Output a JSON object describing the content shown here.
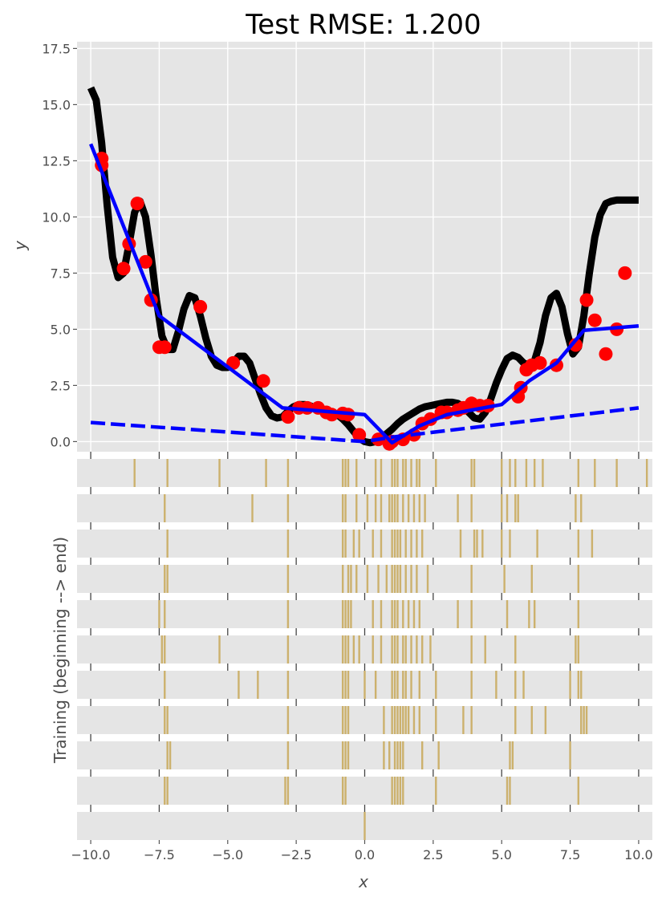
{
  "chart_data": {
    "type": "line",
    "title": "Test RMSE: 1.200",
    "xlabel": "x",
    "ylabel": "y",
    "xlim": [
      -10.5,
      10.5
    ],
    "ylim": [
      -0.45,
      17.8
    ],
    "xticks": [
      "−10.0",
      "−7.5",
      "−5.0",
      "−2.5",
      "0.0",
      "2.5",
      "5.0",
      "7.5",
      "10.0"
    ],
    "yticks": [
      "0.0",
      "2.5",
      "5.0",
      "7.5",
      "10.0",
      "12.5",
      "15.0",
      "17.5"
    ],
    "grid": true,
    "colors": {
      "background": "#e5e5e5",
      "true_function": "#000000",
      "points": "#ff0000",
      "prediction": "#0000ff",
      "linear": "#0000ff",
      "training_marks": "#b8860b"
    },
    "series": [
      {
        "style": "black thick line",
        "x": [
          -10.0,
          -9.8,
          -9.6,
          -9.4,
          -9.2,
          -9.0,
          -8.8,
          -8.6,
          -8.4,
          -8.2,
          -8.0,
          -7.8,
          -7.6,
          -7.4,
          -7.2,
          -7.0,
          -6.8,
          -6.6,
          -6.4,
          -6.2,
          -6.0,
          -5.8,
          -5.6,
          -5.4,
          -5.2,
          -5.0,
          -4.8,
          -4.6,
          -4.4,
          -4.2,
          -4.0,
          -3.8,
          -3.6,
          -3.4,
          -3.2,
          -3.0,
          -2.8,
          -2.6,
          -2.4,
          -2.2,
          -2.0,
          -1.8,
          -1.6,
          -1.4,
          -1.2,
          -1.0,
          -0.8,
          -0.6,
          -0.4,
          -0.2,
          0.0,
          0.2,
          0.4,
          0.6,
          0.8,
          1.0,
          1.2,
          1.4,
          1.6,
          1.8,
          2.0,
          2.2,
          2.4,
          2.6,
          2.8,
          3.0,
          3.2,
          3.4,
          3.6,
          3.8,
          4.0,
          4.2,
          4.4,
          4.6,
          4.8,
          5.0,
          5.2,
          5.4,
          5.6,
          5.8,
          6.0,
          6.2,
          6.4,
          6.6,
          6.8,
          7.0,
          7.2,
          7.4,
          7.6,
          7.8,
          8.0,
          8.2,
          8.4,
          8.6,
          8.8,
          9.0,
          9.2,
          9.4,
          9.6,
          9.8,
          10.0
        ],
        "y": [
          15.75,
          15.2,
          13.3,
          10.5,
          8.2,
          7.3,
          7.5,
          8.8,
          10.2,
          10.7,
          10.0,
          8.3,
          6.3,
          4.7,
          4.1,
          4.1,
          4.9,
          5.9,
          6.5,
          6.4,
          5.6,
          4.6,
          3.8,
          3.4,
          3.3,
          3.3,
          3.5,
          3.8,
          3.8,
          3.5,
          2.8,
          2.1,
          1.5,
          1.15,
          1.05,
          1.1,
          1.35,
          1.55,
          1.65,
          1.65,
          1.6,
          1.5,
          1.4,
          1.3,
          1.25,
          1.2,
          1.0,
          0.75,
          0.45,
          0.15,
          0.0,
          -0.05,
          0.0,
          0.15,
          0.35,
          0.55,
          0.8,
          1.0,
          1.15,
          1.3,
          1.45,
          1.55,
          1.6,
          1.65,
          1.7,
          1.75,
          1.75,
          1.7,
          1.55,
          1.3,
          1.05,
          1.0,
          1.3,
          1.9,
          2.6,
          3.2,
          3.7,
          3.85,
          3.75,
          3.5,
          3.4,
          3.6,
          4.4,
          5.6,
          6.4,
          6.6,
          6.0,
          4.8,
          3.9,
          4.2,
          5.6,
          7.5,
          9.1,
          10.1,
          10.6,
          10.7,
          10.75,
          10.75,
          10.75,
          10.75,
          10.75
        ]
      },
      {
        "style": "red points",
        "x": [
          -9.6,
          -9.6,
          -8.8,
          -8.6,
          -8.3,
          -8.0,
          -7.8,
          -7.5,
          -7.3,
          -6.0,
          -4.8,
          -3.7,
          -2.8,
          -2.4,
          -2.1,
          -1.7,
          -1.4,
          -1.2,
          -0.8,
          -0.6,
          -0.2,
          0.5,
          0.9,
          1.0,
          1.4,
          1.8,
          2.1,
          2.4,
          2.8,
          3.0,
          3.4,
          3.6,
          3.9,
          4.2,
          4.5,
          5.6,
          5.7,
          5.9,
          6.1,
          6.4,
          7.0,
          7.7,
          8.1,
          8.4,
          8.8,
          9.2,
          9.5
        ],
        "y": [
          12.6,
          12.3,
          7.7,
          8.8,
          10.6,
          8.0,
          6.3,
          4.2,
          4.2,
          6.0,
          3.5,
          2.7,
          1.1,
          1.5,
          1.5,
          1.5,
          1.3,
          1.2,
          1.25,
          1.2,
          0.3,
          0.1,
          -0.1,
          0.0,
          0.1,
          0.3,
          0.8,
          1.0,
          1.3,
          1.3,
          1.4,
          1.5,
          1.7,
          1.6,
          1.6,
          2.0,
          2.4,
          3.2,
          3.4,
          3.5,
          3.4,
          4.3,
          6.3,
          5.4,
          3.9,
          5.0,
          7.5
        ]
      },
      {
        "style": "blue solid line",
        "x": [
          -10.0,
          -7.5,
          -3.0,
          0.0,
          1.0,
          2.0,
          3.0,
          5.0,
          6.0,
          7.0,
          8.0,
          10.0
        ],
        "y": [
          13.25,
          5.6,
          1.5,
          1.2,
          -0.05,
          0.7,
          1.2,
          1.65,
          2.7,
          3.5,
          4.95,
          5.15
        ]
      },
      {
        "style": "blue dashed line",
        "x": [
          -10.0,
          0.0,
          1.0,
          10.0
        ],
        "y": [
          0.85,
          0.0,
          0.2,
          1.5
        ]
      }
    ],
    "training_rows": [
      [
        -8.4,
        -7.2,
        -5.3,
        -3.6,
        -2.8,
        -0.8,
        -0.7,
        -0.6,
        -0.3,
        0.4,
        0.6,
        1.0,
        1.1,
        1.2,
        1.4,
        1.5,
        1.7,
        1.9,
        2.0,
        2.6,
        3.9,
        4.0,
        5.0,
        5.3,
        5.5,
        5.9,
        6.2,
        6.5,
        7.8,
        8.4,
        9.2,
        10.3
      ],
      [
        -7.3,
        -4.1,
        -2.8,
        -0.8,
        -0.7,
        -0.3,
        0.1,
        0.4,
        0.6,
        0.9,
        1.0,
        1.1,
        1.2,
        1.4,
        1.6,
        1.8,
        2.0,
        2.2,
        3.4,
        3.9,
        5.0,
        5.2,
        5.5,
        5.6,
        7.7,
        7.9
      ],
      [
        -7.2,
        -2.8,
        -0.8,
        -0.7,
        -0.4,
        -0.2,
        0.3,
        0.6,
        1.0,
        1.1,
        1.2,
        1.3,
        1.5,
        1.7,
        1.9,
        2.1,
        3.5,
        4.0,
        4.1,
        4.3,
        5.0,
        5.3,
        6.3,
        7.8,
        8.3
      ],
      [
        -7.3,
        -7.2,
        -2.8,
        -0.8,
        -0.6,
        -0.5,
        -0.3,
        0.1,
        0.5,
        0.8,
        1.0,
        1.1,
        1.2,
        1.3,
        1.5,
        1.7,
        1.9,
        2.3,
        3.9,
        5.1,
        6.1,
        7.8
      ],
      [
        -7.5,
        -7.3,
        -2.8,
        -0.8,
        -0.7,
        -0.6,
        -0.5,
        0.3,
        0.6,
        1.0,
        1.1,
        1.2,
        1.4,
        1.6,
        1.8,
        2.0,
        3.4,
        3.9,
        5.2,
        6.0,
        6.2,
        7.8
      ],
      [
        -7.4,
        -7.3,
        -5.3,
        -2.8,
        -0.8,
        -0.7,
        -0.6,
        -0.4,
        -0.2,
        0.3,
        0.6,
        1.0,
        1.1,
        1.2,
        1.4,
        1.5,
        1.7,
        1.9,
        2.1,
        2.4,
        3.9,
        4.4,
        5.5,
        7.7,
        7.8
      ],
      [
        -7.3,
        -4.6,
        -3.9,
        -2.8,
        -0.8,
        -0.7,
        -0.6,
        0.0,
        0.4,
        1.0,
        1.1,
        1.2,
        1.4,
        1.5,
        1.7,
        2.0,
        2.6,
        3.9,
        4.8,
        5.5,
        5.8,
        7.5,
        7.8,
        7.9
      ],
      [
        -7.3,
        -7.2,
        -2.8,
        -0.8,
        -0.7,
        -0.6,
        0.7,
        1.0,
        1.1,
        1.2,
        1.3,
        1.4,
        1.5,
        1.6,
        1.8,
        2.0,
        2.6,
        3.6,
        3.9,
        5.5,
        6.1,
        6.6,
        7.9,
        8.0,
        8.1
      ],
      [
        -7.2,
        -7.1,
        -2.8,
        -0.8,
        -0.7,
        -0.6,
        0.7,
        0.9,
        1.1,
        1.2,
        1.3,
        1.4,
        2.1,
        2.7,
        5.3,
        5.4,
        7.5
      ],
      [
        -7.3,
        -7.2,
        -2.9,
        -2.8,
        -0.8,
        -0.7,
        1.0,
        1.1,
        1.2,
        1.3,
        1.4,
        2.6,
        5.2,
        5.3,
        7.8
      ],
      [
        0.0
      ]
    ]
  }
}
